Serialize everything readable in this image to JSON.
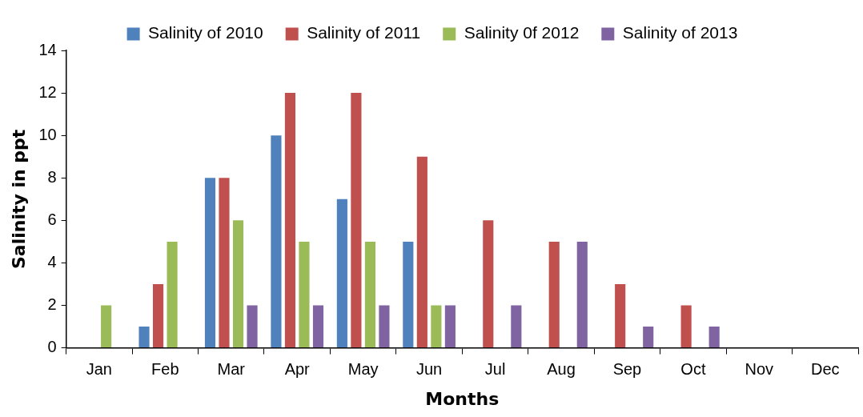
{
  "chart_data": {
    "type": "bar",
    "xlabel": "Months",
    "ylabel": "Salinity in ppt",
    "categories": [
      "Jan",
      "Feb",
      "Mar",
      "Apr",
      "May",
      "Jun",
      "Jul",
      "Aug",
      "Sep",
      "Oct",
      "Nov",
      "Dec"
    ],
    "series": [
      {
        "name": "Salinity of 2010",
        "color": "#4f81bd",
        "values": [
          0,
          1,
          8,
          10,
          7,
          5,
          0,
          0,
          0,
          0,
          0,
          0
        ]
      },
      {
        "name": "Salinity of 2011",
        "color": "#c0504d",
        "values": [
          0,
          3,
          8,
          12,
          12,
          9,
          6,
          5,
          3,
          2,
          0,
          0
        ]
      },
      {
        "name": "Salinity 0f 2012",
        "color": "#9bbb59",
        "values": [
          2,
          5,
          6,
          5,
          5,
          2,
          0,
          0,
          0,
          0,
          0,
          0
        ]
      },
      {
        "name": "Salinity of 2013",
        "color": "#8064a2",
        "values": [
          0,
          0,
          2,
          2,
          2,
          2,
          2,
          5,
          1,
          1,
          0,
          0
        ]
      }
    ],
    "ylim": [
      0,
      14
    ],
    "yticks": [
      0,
      2,
      4,
      6,
      8,
      10,
      12,
      14
    ],
    "grid": false,
    "legend": "top"
  }
}
